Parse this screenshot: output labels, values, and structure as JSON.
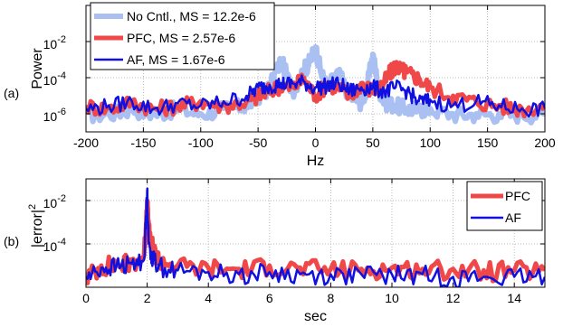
{
  "chart_data": [
    {
      "type": "line",
      "panel_label": "(a)",
      "xlabel": "Hz",
      "ylabel": "Power",
      "xlim": [
        -200,
        200
      ],
      "ylim": [
        1e-07,
        1
      ],
      "yscale": "log",
      "grid": true,
      "legend_position": "top-left",
      "xticks": [
        -200,
        -150,
        -100,
        -50,
        0,
        50,
        100,
        150,
        200
      ],
      "yticks": [
        {
          "value": 1e-06,
          "base": "10",
          "exp": "-6"
        },
        {
          "value": 0.0001,
          "base": "10",
          "exp": "-4"
        },
        {
          "value": 0.01,
          "base": "10",
          "exp": "-2"
        }
      ],
      "series": [
        {
          "name": "No Cntl., MS = 12.2e-6",
          "color": "#aabff2",
          "width": 6,
          "x": [
            -200,
            -180,
            -160,
            -140,
            -120,
            -100,
            -80,
            -60,
            -50,
            -40,
            -30,
            -20,
            -10,
            -5,
            0,
            5,
            10,
            20,
            30,
            40,
            45,
            50,
            55,
            60,
            70,
            80,
            90,
            100,
            120,
            140,
            160,
            180,
            200
          ],
          "y": [
            1e-06,
            1e-06,
            2e-06,
            1e-06,
            2e-06,
            1e-06,
            2e-06,
            3e-06,
            1e-05,
            3e-05,
            0.001,
            2e-05,
            0.0003,
            0.0008,
            0.005,
            0.0002,
            3e-05,
            0.0002,
            1e-05,
            5e-06,
            3e-05,
            0.002,
            3e-05,
            5e-06,
            3e-06,
            2e-06,
            2e-06,
            2e-06,
            1e-06,
            1e-06,
            1e-06,
            1e-06,
            1e-06
          ]
        },
        {
          "name": "PFC, MS = 2.57e-6",
          "color": "#f04848",
          "width": 5,
          "x": [
            -200,
            -180,
            -160,
            -140,
            -120,
            -100,
            -80,
            -60,
            -50,
            -40,
            -30,
            -20,
            -10,
            0,
            10,
            20,
            30,
            40,
            50,
            60,
            65,
            70,
            75,
            80,
            90,
            100,
            120,
            140,
            160,
            180,
            200
          ],
          "y": [
            3e-06,
            2e-06,
            5e-06,
            2e-06,
            3e-06,
            5e-06,
            3e-06,
            5e-06,
            1e-05,
            2e-05,
            4e-05,
            3e-05,
            0.0001,
            1e-05,
            5e-05,
            3e-05,
            1e-05,
            5e-05,
            2e-05,
            6e-05,
            0.0002,
            0.0005,
            0.0003,
            0.0002,
            0.0001,
            3e-05,
            1e-05,
            5e-06,
            3e-06,
            2e-06,
            3e-06
          ]
        },
        {
          "name": "AF, MS = 1.67e-6",
          "color": "#1010e0",
          "width": 2.5,
          "x": [
            -200,
            -180,
            -160,
            -140,
            -120,
            -100,
            -80,
            -60,
            -50,
            -40,
            -30,
            -20,
            -10,
            0,
            10,
            20,
            30,
            40,
            50,
            60,
            70,
            80,
            90,
            100,
            120,
            140,
            160,
            180,
            200
          ],
          "y": [
            2e-06,
            3e-06,
            5e-06,
            2e-06,
            4e-06,
            3e-06,
            5e-06,
            1e-05,
            3e-05,
            4e-05,
            5e-05,
            5e-05,
            6e-05,
            3e-05,
            4e-05,
            5e-05,
            2e-05,
            3e-05,
            3e-05,
            2e-05,
            3e-05,
            2e-05,
            5e-06,
            6e-06,
            3e-06,
            5e-06,
            3e-06,
            2e-06,
            2e-06
          ]
        }
      ]
    },
    {
      "type": "line",
      "panel_label": "(b)",
      "xlabel": "sec",
      "ylabel_base": "|error|",
      "ylabel_sup": "2",
      "xlim": [
        0,
        15
      ],
      "ylim": [
        1e-06,
        0.1
      ],
      "yscale": "log",
      "grid": true,
      "legend_position": "top-right",
      "xticks": [
        0,
        2,
        4,
        6,
        8,
        10,
        12,
        14
      ],
      "yticks": [
        {
          "value": 0.0001,
          "base": "10",
          "exp": "-4"
        },
        {
          "value": 0.01,
          "base": "10",
          "exp": "-2"
        }
      ],
      "series": [
        {
          "name": "PFC",
          "color": "#f04848",
          "width": 5,
          "x": [
            0,
            0.5,
            1,
            1.5,
            1.9,
            2,
            2.05,
            2.2,
            2.4,
            3,
            4,
            5,
            6,
            7,
            8,
            9,
            10,
            11,
            12,
            13,
            14,
            15
          ],
          "y": [
            3e-06,
            1e-05,
            1.2e-05,
            1.5e-05,
            3e-05,
            0.01,
            0.0004,
            5e-05,
            2e-05,
            1e-05,
            8e-06,
            7e-06,
            1e-05,
            8e-06,
            7e-06,
            7e-06,
            8e-06,
            7e-06,
            7e-06,
            6e-06,
            6e-06,
            6e-06
          ]
        },
        {
          "name": "AF",
          "color": "#1010e0",
          "width": 2.5,
          "x": [
            0,
            0.5,
            1,
            1.5,
            1.9,
            2,
            2.05,
            2.2,
            2.4,
            3,
            4,
            5,
            6,
            7,
            8,
            9,
            10,
            11,
            12,
            13,
            14,
            15
          ],
          "y": [
            3e-06,
            8e-06,
            1e-05,
            1.2e-05,
            2e-05,
            0.03,
            0.0001,
            2e-05,
            1e-05,
            6e-06,
            5e-06,
            4e-06,
            5e-06,
            4e-06,
            4e-06,
            4e-06,
            4e-06,
            4e-06,
            3e-06,
            3e-06,
            3e-06,
            3e-06
          ]
        }
      ]
    }
  ]
}
